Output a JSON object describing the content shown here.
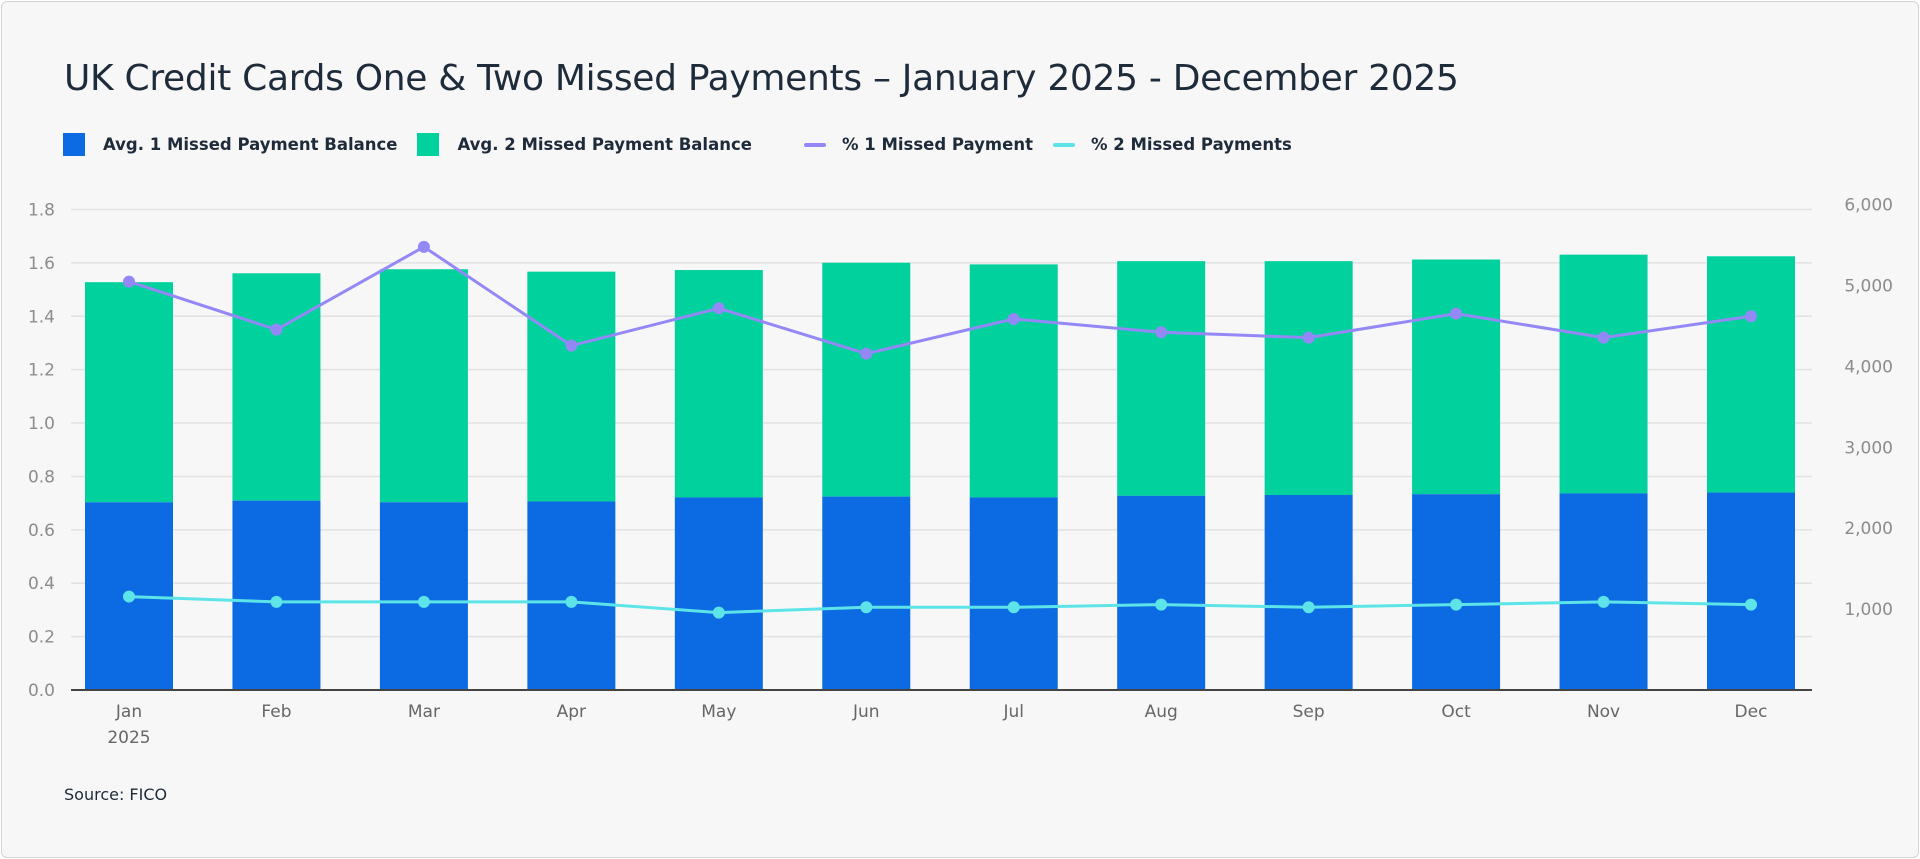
{
  "chart_data": {
    "type": "bar",
    "stacked": true,
    "title": "UK Credit Cards One & Two Missed Payments – January 2025 - December 2025",
    "categories": [
      "Jan",
      "Feb",
      "Mar",
      "Apr",
      "May",
      "Jun",
      "Jul",
      "Aug",
      "Sep",
      "Oct",
      "Nov",
      "Dec"
    ],
    "category_sublabel": {
      "index": 0,
      "text": "2025"
    },
    "series": [
      {
        "name": "Avg. 1 Missed Payment Balance",
        "type": "bar",
        "axis": "right",
        "color": "#0c6be2",
        "values": [
          2320,
          2340,
          2320,
          2330,
          2380,
          2390,
          2380,
          2400,
          2410,
          2420,
          2430,
          2440
        ]
      },
      {
        "name": "Avg. 2 Missed Payment Balance",
        "type": "bar",
        "axis": "right",
        "color": "#00d19d",
        "values": [
          2720,
          2810,
          2880,
          2840,
          2810,
          2890,
          2880,
          2900,
          2890,
          2900,
          2950,
          2920
        ]
      },
      {
        "name": "% 1 Missed Payment",
        "type": "line",
        "axis": "left",
        "color": "#9488f7",
        "values": [
          1.53,
          1.35,
          1.66,
          1.29,
          1.43,
          1.26,
          1.39,
          1.34,
          1.32,
          1.41,
          1.32,
          1.4
        ]
      },
      {
        "name": "% 2 Missed Payments",
        "type": "line",
        "axis": "left",
        "color": "#5de4e8",
        "values": [
          0.35,
          0.33,
          0.33,
          0.33,
          0.29,
          0.31,
          0.31,
          0.32,
          0.31,
          0.32,
          0.33,
          0.32
        ]
      }
    ],
    "y_left": {
      "min": 0,
      "max": 1.8,
      "ticks": [
        "0.0",
        "0.2",
        "0.4",
        "0.6",
        "0.8",
        "1.0",
        "1.2",
        "1.4",
        "1.6",
        "1.8"
      ]
    },
    "y_right": {
      "min": 0,
      "max": 6000,
      "ticks": [
        "1,000",
        "2,000",
        "3,000",
        "4,000",
        "5,000",
        "6,000"
      ]
    },
    "grid": true,
    "legend_position": "top-left",
    "source": "Source: FICO"
  }
}
